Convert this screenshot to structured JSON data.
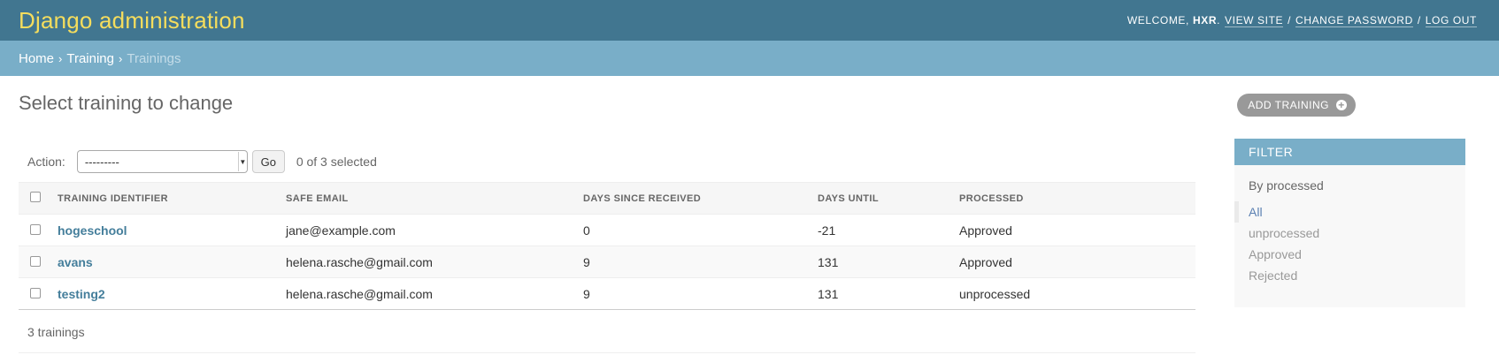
{
  "header": {
    "branding": "Django administration",
    "welcome": "Welcome,",
    "username": "HXR",
    "links": {
      "view_site": "View site",
      "change_password": "Change password",
      "log_out": "Log out"
    },
    "sep1": "/",
    "sep2": "/"
  },
  "breadcrumbs": {
    "home": "Home",
    "app": "Training",
    "current": "Trainings",
    "arrow1": "›",
    "arrow2": "›"
  },
  "page": {
    "title": "Select training to change",
    "add_button": "ADD TRAINING"
  },
  "actions": {
    "label": "Action:",
    "selected": "---------",
    "go": "Go",
    "count": "0 of 3 selected"
  },
  "table": {
    "headers": [
      "TRAINING IDENTIFIER",
      "SAFE EMAIL",
      "DAYS SINCE RECEIVED",
      "DAYS UNTIL",
      "PROCESSED"
    ],
    "rows": [
      {
        "identifier": "hogeschool",
        "email": "jane@example.com",
        "since": "0",
        "until": "-21",
        "processed": "Approved"
      },
      {
        "identifier": "avans",
        "email": "helena.rasche@gmail.com",
        "since": "9",
        "until": "131",
        "processed": "Approved"
      },
      {
        "identifier": "testing2",
        "email": "helena.rasche@gmail.com",
        "since": "9",
        "until": "131",
        "processed": "unprocessed"
      }
    ]
  },
  "paginator": {
    "text": "3 trainings"
  },
  "filter": {
    "title": "FILTER",
    "section": "By processed",
    "options": [
      "All",
      "unprocessed",
      "Approved",
      "Rejected"
    ]
  },
  "colors": {
    "header": "#417690",
    "breadcrumbs": "#79aec8",
    "branding": "#f5dd5d",
    "link": "#447e9b"
  }
}
